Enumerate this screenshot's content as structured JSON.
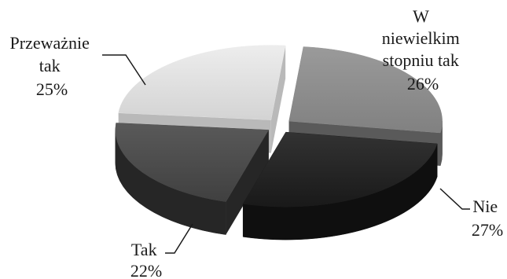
{
  "chart_data": {
    "type": "pie",
    "title": "",
    "legend": "none",
    "slices": [
      {
        "label": "W niewielkim stopniu tak",
        "label_lines": [
          "W",
          "niewielkim",
          "stopniu tak"
        ],
        "value": 26,
        "value_text": "26%",
        "color": "#8f8f8f",
        "side_color": "#5a5a5a"
      },
      {
        "label": "Nie",
        "label_lines": [
          "Nie"
        ],
        "value": 27,
        "value_text": "27%",
        "color": "#1c1c1c",
        "side_color": "#0f0f0f"
      },
      {
        "label": "Tak",
        "label_lines": [
          "Tak"
        ],
        "value": 22,
        "value_text": "22%",
        "color": "#474747",
        "side_color": "#262626"
      },
      {
        "label": "Przeważnie tak",
        "label_lines": [
          "Przeważnie",
          "tak"
        ],
        "value": 25,
        "value_text": "25%",
        "color": "#ebebeb",
        "side_color": "#b9b9b9"
      }
    ]
  }
}
